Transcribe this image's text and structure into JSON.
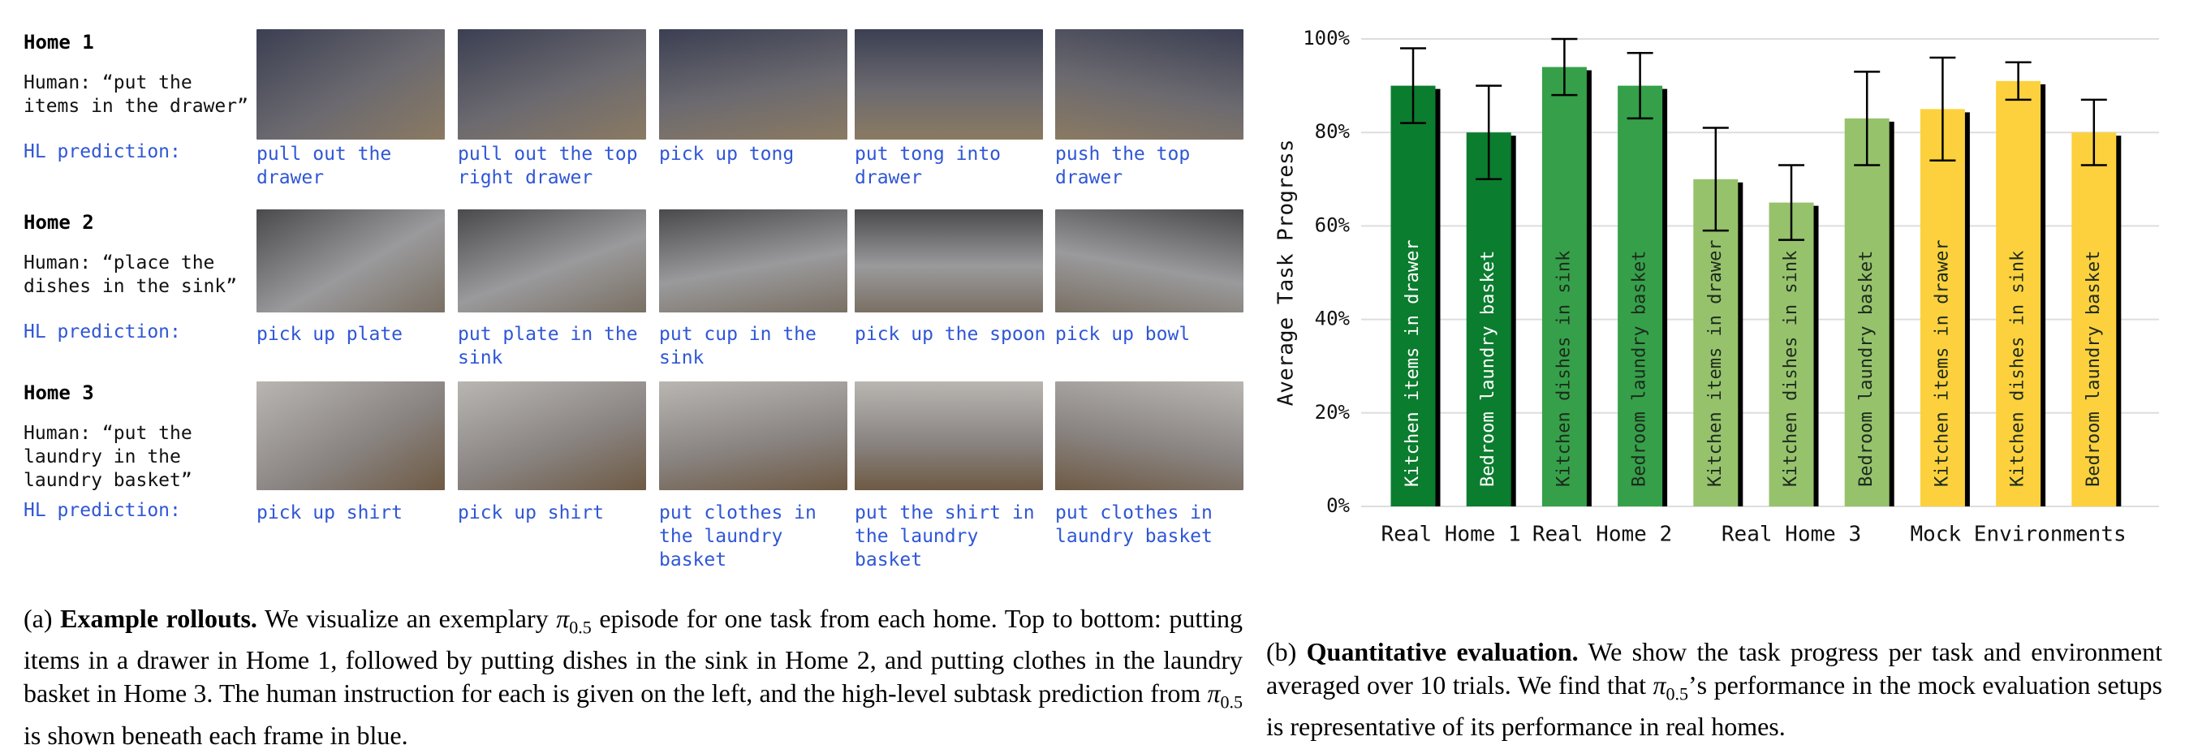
{
  "rollouts": {
    "hl_label": "HL prediction:",
    "homes": [
      {
        "title": "Home 1",
        "instruction": [
          "Human: “put the",
          "items in the drawer”"
        ],
        "subtasks": [
          [
            "pull out the",
            "drawer"
          ],
          [
            "pull out the top",
            "right drawer"
          ],
          [
            "pick up tong"
          ],
          [
            "put tong into",
            "drawer"
          ],
          [
            "push the top",
            "drawer"
          ]
        ]
      },
      {
        "title": "Home 2",
        "instruction": [
          "Human: “place the",
          "dishes in the sink”"
        ],
        "subtasks": [
          [
            "pick up plate"
          ],
          [
            "put plate in the",
            "sink"
          ],
          [
            "put cup in the",
            "sink"
          ],
          [
            "pick up the spoon"
          ],
          [
            "pick up bowl"
          ]
        ]
      },
      {
        "title": "Home 3",
        "instruction": [
          "Human: “put the",
          "laundry in the",
          "laundry basket”"
        ],
        "subtasks": [
          [
            "pick up shirt"
          ],
          [
            "pick up shirt"
          ],
          [
            "put clothes in",
            "the laundry",
            "basket"
          ],
          [
            "put the shirt in",
            "the laundry",
            "basket"
          ],
          [
            "put clothes in",
            "laundry basket"
          ]
        ]
      }
    ]
  },
  "chart_data": {
    "type": "bar",
    "ylabel": "Average Task Progress",
    "ylim": [
      0,
      100
    ],
    "yticks": [
      {
        "value": 0,
        "label": "0%"
      },
      {
        "value": 20,
        "label": "20%"
      },
      {
        "value": 40,
        "label": "40%"
      },
      {
        "value": 60,
        "label": "60%"
      },
      {
        "value": 80,
        "label": "80%"
      },
      {
        "value": 100,
        "label": "100%"
      }
    ],
    "grid": true,
    "groups": [
      {
        "name": "Real Home 1",
        "color": "#0b7d2e",
        "label_color": "#ffffff",
        "bars": [
          {
            "name": "Kitchen items in drawer",
            "value": 90,
            "error": 8
          },
          {
            "name": "Bedroom laundry basket",
            "value": 80,
            "error": 10
          }
        ]
      },
      {
        "name": "Real Home 2",
        "color": "#35a049",
        "label_color": "#1d2a1d",
        "bars": [
          {
            "name": "Kitchen dishes in sink",
            "value": 94,
            "error": 6
          },
          {
            "name": "Bedroom laundry basket",
            "value": 90,
            "error": 7
          }
        ]
      },
      {
        "name": "Real Home 3",
        "color": "#96c26c",
        "label_color": "#1d2a1d",
        "bars": [
          {
            "name": "Kitchen items in drawer",
            "value": 70,
            "error": 11
          },
          {
            "name": "Kitchen dishes in sink",
            "value": 65,
            "error": 8
          },
          {
            "name": "Bedroom laundry basket",
            "value": 83,
            "error": 10
          }
        ]
      },
      {
        "name": "Mock Environments",
        "color": "#fcd13d",
        "label_color": "#1d2a1d",
        "bars": [
          {
            "name": "Kitchen items in drawer",
            "value": 85,
            "error": 11
          },
          {
            "name": "Kitchen dishes in sink",
            "value": 91,
            "error": 4
          },
          {
            "name": "Bedroom laundry basket",
            "value": 80,
            "error": 7
          }
        ]
      }
    ]
  },
  "captions": [
    {
      "label": "(a)",
      "heading": "Example rollouts.",
      "body": [
        "We visualize an exemplary ",
        {
          "symbol": "π",
          "sub": "0.5"
        },
        " episode for one task from each home. Top to bottom: putting items in a drawer in Home 1, followed by putting dishes in the sink in Home 2, and putting clothes in the laundry basket in Home 3. The human instruction for each is given on the left, and the high-level subtask prediction from ",
        {
          "symbol": "π",
          "sub": "0.5"
        },
        " is shown beneath each frame in blue."
      ]
    },
    {
      "label": "(b)",
      "heading": "Quantitative evaluation.",
      "body": [
        "We show the task progress per task and environment averaged over 10 trials. We find that ",
        {
          "symbol": "π",
          "sub": "0.5"
        },
        "’s performance in the mock evaluation setups is representative of its performance in real homes."
      ]
    }
  ]
}
